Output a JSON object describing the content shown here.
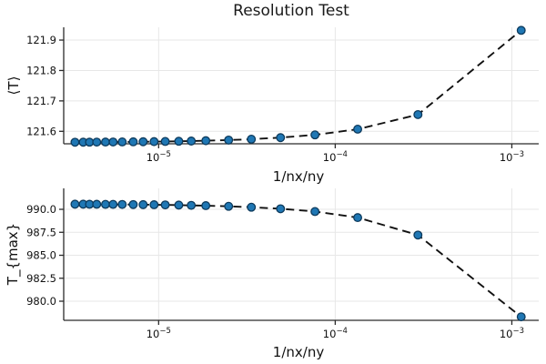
{
  "title": "Resolution Test",
  "background": "#ffffff",
  "colors": {
    "grid": "#e7e7e7",
    "spine": "#2b2b2b",
    "tick_label": "#111111",
    "line": "#111111",
    "marker_fill": "#1f77b4",
    "marker_edge": "#0d3a5c"
  },
  "chart_data": [
    {
      "type": "line",
      "name": "mean-temperature-vs-resolution",
      "xlabel": "1/nx/ny",
      "ylabel": "⟨T⟩",
      "xscale": "log",
      "grid": true,
      "legend": "none",
      "line_style": "dashed",
      "marker": "circle",
      "xlim": [
        2.9e-06,
        0.00142
      ],
      "ylim": [
        121.559,
        121.942
      ],
      "xtick_exponents": [
        -5,
        -4,
        -3
      ],
      "yticks": [
        121.6,
        121.7,
        121.8,
        121.9
      ],
      "ytick_labels": [
        "121.6",
        "121.7",
        "121.8",
        "121.9"
      ],
      "x": [
        3.36e-06,
        3.74e-06,
        4.06e-06,
        4.46e-06,
        5e-06,
        5.52e-06,
        6.22e-06,
        7.18e-06,
        8.17e-06,
        9.42e-06,
        1.09e-05,
        1.3e-05,
        1.53e-05,
        1.85e-05,
        2.49e-05,
        3.35e-05,
        4.9e-05,
        7.68e-05,
        0.000134,
        0.000294,
        0.00113
      ],
      "y": [
        121.5641,
        121.5642,
        121.5643,
        121.5645,
        121.5647,
        121.5648,
        121.5651,
        121.5654,
        121.5657,
        121.5661,
        121.5666,
        121.5673,
        121.568,
        121.5691,
        121.5712,
        121.5741,
        121.5792,
        121.5883,
        121.607,
        121.655,
        121.932
      ]
    },
    {
      "type": "line",
      "name": "max-temperature-vs-resolution",
      "xlabel": "1/nx/ny",
      "ylabel": "T_{max}",
      "xscale": "log",
      "grid": true,
      "legend": "none",
      "line_style": "dashed",
      "marker": "circle",
      "xlim": [
        2.9e-06,
        0.00142
      ],
      "ylim": [
        977.92,
        992.28
      ],
      "xtick_exponents": [
        -5,
        -4,
        -3
      ],
      "yticks": [
        980.0,
        982.5,
        985.0,
        987.5,
        990.0
      ],
      "ytick_labels": [
        "980.0",
        "982.5",
        "985.0",
        "987.5",
        "990.0"
      ],
      "x": [
        3.36e-06,
        3.74e-06,
        4.06e-06,
        4.46e-06,
        5e-06,
        5.52e-06,
        6.22e-06,
        7.18e-06,
        8.17e-06,
        9.42e-06,
        1.09e-05,
        1.3e-05,
        1.53e-05,
        1.85e-05,
        2.49e-05,
        3.35e-05,
        4.9e-05,
        7.68e-05,
        0.000134,
        0.000294,
        0.00113
      ],
      "y": [
        990.56,
        990.56,
        990.55,
        990.55,
        990.54,
        990.54,
        990.53,
        990.52,
        990.51,
        990.5,
        990.48,
        990.46,
        990.43,
        990.4,
        990.33,
        990.23,
        990.06,
        989.76,
        989.1,
        987.2,
        978.3
      ]
    }
  ]
}
